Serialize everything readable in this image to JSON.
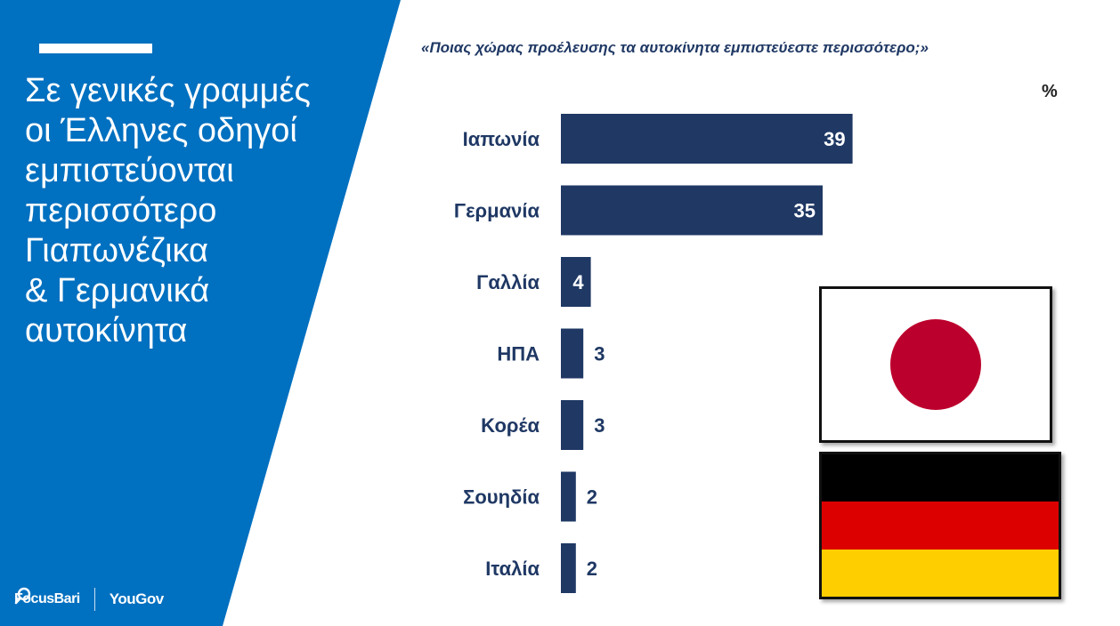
{
  "headline": {
    "lines": [
      "Σε γενικές γραμμές",
      "οι Έλληνες οδηγοί",
      "εμπιστεύονται",
      "περισσότερο",
      "Γιαπωνέζικα",
      "& Γερμανικά",
      "αυτοκίνητα"
    ]
  },
  "logos": {
    "focus": "FocusBari",
    "yougov": "YouGov"
  },
  "colors": {
    "panel_blue": "#0070c0",
    "bar": "#1f3864",
    "japan_red": "#bc002d",
    "germany": [
      "#000000",
      "#dd0000",
      "#ffce00"
    ]
  },
  "chart_data": {
    "type": "bar",
    "orientation": "horizontal",
    "title": "«Ποιας χώρας προέλευσης τα αυτοκίνητα εμπιστεύεστε περισσότερο;»",
    "unit": "%",
    "categories": [
      "Ιαπωνία",
      "Γερμανία",
      "Γαλλία",
      "ΗΠΑ",
      "Κορέα",
      "Σουηδία",
      "Ιταλία"
    ],
    "values": [
      39,
      35,
      4,
      3,
      3,
      2,
      2
    ],
    "xlim": [
      0,
      40
    ],
    "grid": false,
    "legend": "none"
  }
}
